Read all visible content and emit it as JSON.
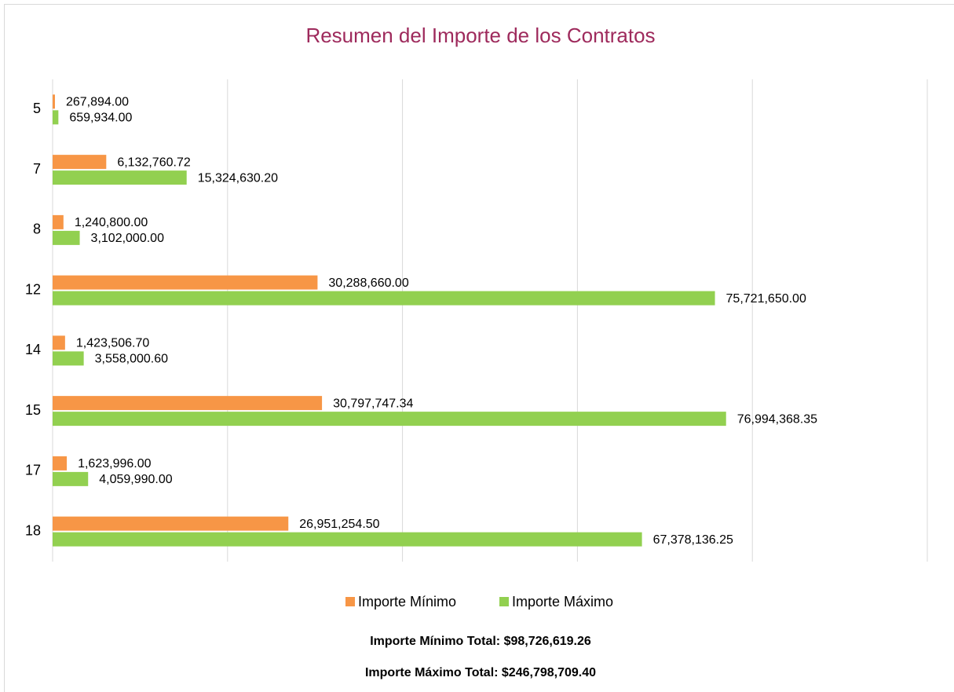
{
  "chart_data": {
    "type": "barh",
    "title": "Resumen del Importe de los Contratos",
    "categories": [
      "5",
      "7",
      "8",
      "12",
      "14",
      "15",
      "17",
      "18"
    ],
    "series": [
      {
        "name": "Importe Mínimo",
        "color": "#f79646",
        "values": [
          267894.0,
          6132760.72,
          1240800.0,
          30288660.0,
          1423506.7,
          30797747.34,
          1623996.0,
          26951254.5
        ],
        "value_labels": [
          "267,894.00",
          "6,132,760.72",
          "1,240,800.00",
          "30,288,660.00",
          "1,423,506.70",
          "30,797,747.34",
          "1,623,996.00",
          "26,951,254.50"
        ]
      },
      {
        "name": "Importe Máximo",
        "color": "#92d050",
        "values": [
          659934.0,
          15324630.2,
          3102000.0,
          75721650.0,
          3558000.6,
          76994368.35,
          4059990.0,
          67378136.25
        ],
        "value_labels": [
          "659,934.00",
          "15,324,630.20",
          "3,102,000.00",
          "75,721,650.00",
          "3,558,000.60",
          "76,994,368.35",
          "4,059,990.00",
          "67,378,136.25"
        ]
      }
    ],
    "xlim": [
      0,
      100000000
    ],
    "xticks": [
      0,
      20000000,
      40000000,
      60000000,
      80000000,
      100000000
    ],
    "grid": true,
    "legend": "bottom",
    "annotations": [
      "Importe Mínimo Total: $98,726,619.26",
      "Importe Máximo Total: $246,798,709.40"
    ]
  }
}
